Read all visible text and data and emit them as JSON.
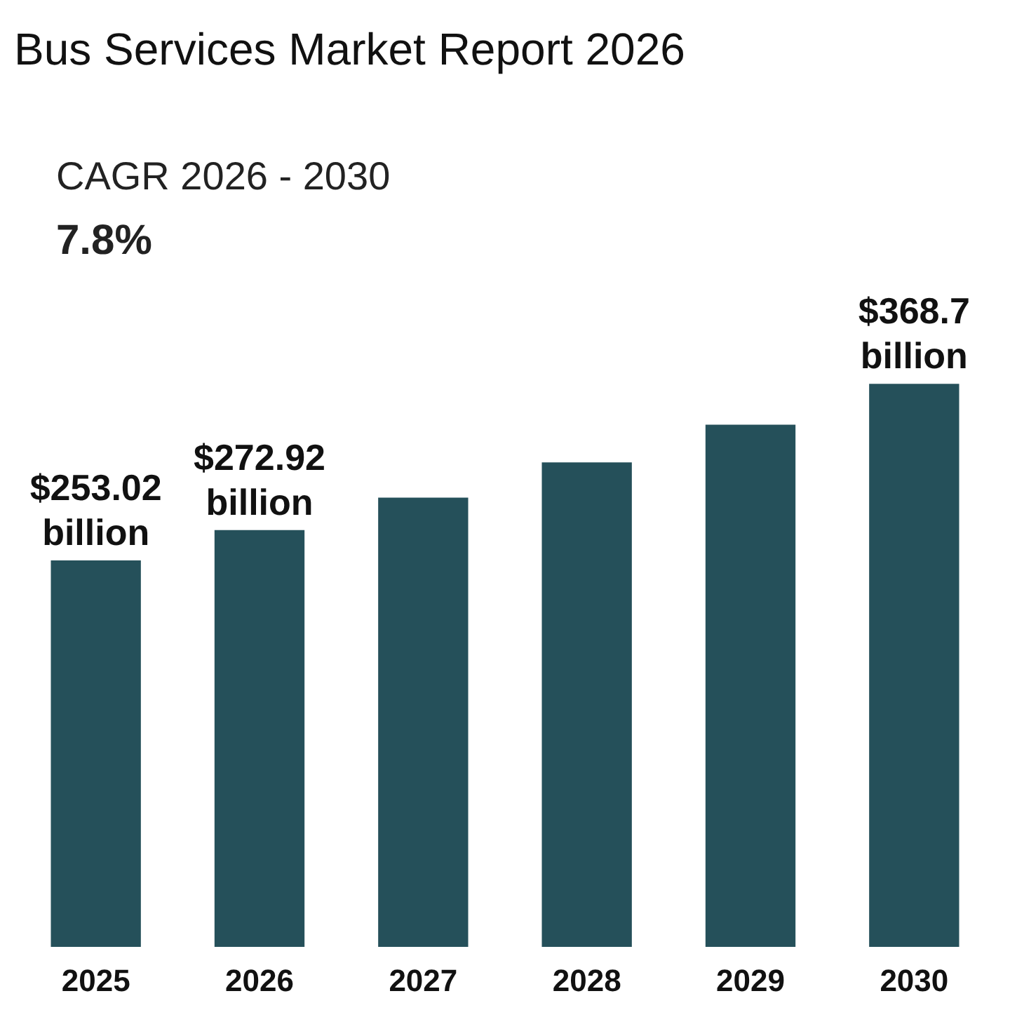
{
  "chart_data": {
    "type": "bar",
    "title": "Bus Services Market Report 2026",
    "categories": [
      "2025",
      "2026",
      "2027",
      "2028",
      "2029",
      "2030"
    ],
    "values": [
      253.02,
      272.92,
      294.2,
      317.2,
      341.9,
      368.7
    ],
    "value_labels": [
      "$253.02 billion",
      "$272.92 billion",
      null,
      null,
      null,
      "$368.7 billion"
    ],
    "color": "#25505a",
    "annotations": [
      "CAGR 2026 - 2030",
      "7.8%"
    ]
  }
}
